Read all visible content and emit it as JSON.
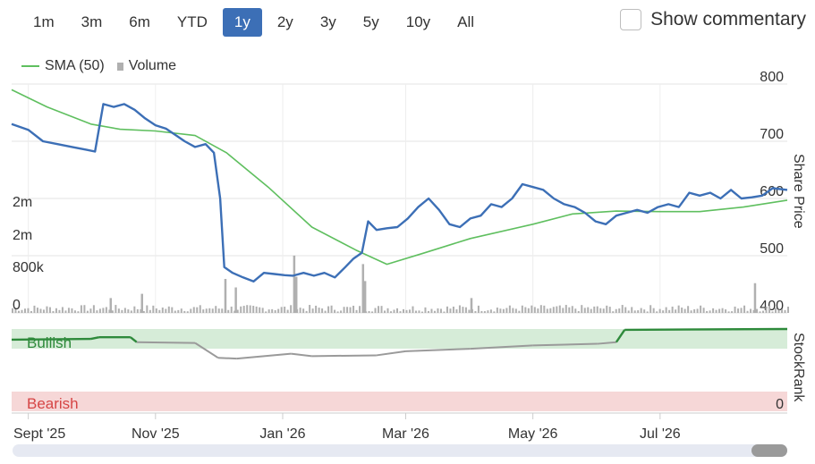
{
  "range_buttons": [
    {
      "label": "1m",
      "active": false
    },
    {
      "label": "3m",
      "active": false
    },
    {
      "label": "6m",
      "active": false
    },
    {
      "label": "YTD",
      "active": false
    },
    {
      "label": "1y",
      "active": true
    },
    {
      "label": "2y",
      "active": false
    },
    {
      "label": "3y",
      "active": false
    },
    {
      "label": "5y",
      "active": false
    },
    {
      "label": "10y",
      "active": false
    },
    {
      "label": "All",
      "active": false
    }
  ],
  "commentary": {
    "label": "Show commentary",
    "checked": false
  },
  "legend": {
    "sma_label": "SMA (50)",
    "volume_label": "Volume"
  },
  "colors": {
    "price": "#3c6fb6",
    "sma": "#5fbf5f",
    "volume": "#b0b0b0",
    "bullish_band": "#d6ecd8",
    "bearish_band": "#f6d7d7",
    "stockrank_bull": "#2e8a3b",
    "stockrank_grey": "#9a9a9a",
    "bearish_text": "#d64545",
    "bullish_text": "#2e8a3b",
    "active_button": "#3c6fb6"
  },
  "chart_data": [
    {
      "type": "line",
      "y_axis_label": "Share Price",
      "y_ticks": [
        "800",
        "700",
        "600",
        "500",
        "400"
      ],
      "ylim": [
        400,
        800
      ],
      "x_tick_labels": [
        "Sept '25",
        "Nov '25",
        "Jan '26",
        "Mar '26",
        "May '26",
        "Jul '26"
      ],
      "x_ticks": [
        "2025-09-01",
        "2025-11-01",
        "2026-01-01",
        "2026-03-01",
        "2026-05-01",
        "2026-07-01"
      ],
      "xlim": [
        "2025-08-24",
        "2026-08-31"
      ],
      "grid": true,
      "series": [
        {
          "name": "Share price",
          "points": [
            [
              "2025-08-24",
              730
            ],
            [
              "2025-09-01",
              720
            ],
            [
              "2025-09-08",
              700
            ],
            [
              "2025-09-15",
              695
            ],
            [
              "2025-09-22",
              690
            ],
            [
              "2025-09-29",
              685
            ],
            [
              "2025-10-03",
              682
            ],
            [
              "2025-10-07",
              765
            ],
            [
              "2025-10-12",
              760
            ],
            [
              "2025-10-17",
              765
            ],
            [
              "2025-10-22",
              755
            ],
            [
              "2025-10-27",
              740
            ],
            [
              "2025-11-01",
              728
            ],
            [
              "2025-11-06",
              722
            ],
            [
              "2025-11-11",
              710
            ],
            [
              "2025-11-15",
              700
            ],
            [
              "2025-11-20",
              690
            ],
            [
              "2025-11-25",
              695
            ],
            [
              "2025-11-29",
              680
            ],
            [
              "2025-12-02",
              600
            ],
            [
              "2025-12-04",
              480
            ],
            [
              "2025-12-08",
              470
            ],
            [
              "2025-12-13",
              462
            ],
            [
              "2025-12-18",
              455
            ],
            [
              "2025-12-23",
              470
            ],
            [
              "2025-12-28",
              468
            ],
            [
              "2026-01-02",
              466
            ],
            [
              "2026-01-06",
              465
            ],
            [
              "2026-01-11",
              470
            ],
            [
              "2026-01-16",
              465
            ],
            [
              "2026-01-21",
              470
            ],
            [
              "2026-01-26",
              462
            ],
            [
              "2026-01-31",
              480
            ],
            [
              "2026-02-04",
              495
            ],
            [
              "2026-02-08",
              505
            ],
            [
              "2026-02-11",
              560
            ],
            [
              "2026-02-15",
              545
            ],
            [
              "2026-02-20",
              548
            ],
            [
              "2026-02-25",
              550
            ],
            [
              "2026-03-02",
              565
            ],
            [
              "2026-03-07",
              585
            ],
            [
              "2026-03-12",
              600
            ],
            [
              "2026-03-17",
              580
            ],
            [
              "2026-03-22",
              555
            ],
            [
              "2026-03-27",
              550
            ],
            [
              "2026-04-01",
              565
            ],
            [
              "2026-04-06",
              570
            ],
            [
              "2026-04-11",
              590
            ],
            [
              "2026-04-16",
              585
            ],
            [
              "2026-04-21",
              600
            ],
            [
              "2026-04-26",
              625
            ],
            [
              "2026-05-01",
              620
            ],
            [
              "2026-05-06",
              615
            ],
            [
              "2026-05-11",
              600
            ],
            [
              "2026-05-16",
              590
            ],
            [
              "2026-05-21",
              585
            ],
            [
              "2026-05-26",
              575
            ],
            [
              "2026-05-31",
              560
            ],
            [
              "2026-06-05",
              555
            ],
            [
              "2026-06-10",
              570
            ],
            [
              "2026-06-15",
              575
            ],
            [
              "2026-06-20",
              580
            ],
            [
              "2026-06-25",
              575
            ],
            [
              "2026-06-30",
              585
            ],
            [
              "2026-07-05",
              590
            ],
            [
              "2026-07-10",
              585
            ],
            [
              "2026-07-15",
              610
            ],
            [
              "2026-07-20",
              605
            ],
            [
              "2026-07-25",
              610
            ],
            [
              "2026-07-30",
              600
            ],
            [
              "2026-08-04",
              615
            ],
            [
              "2026-08-09",
              600
            ],
            [
              "2026-08-14",
              602
            ],
            [
              "2026-08-19",
              605
            ],
            [
              "2026-08-24",
              618
            ],
            [
              "2026-08-31",
              615
            ]
          ]
        },
        {
          "name": "SMA (50)",
          "points": [
            [
              "2025-08-24",
              790
            ],
            [
              "2025-09-10",
              760
            ],
            [
              "2025-10-01",
              730
            ],
            [
              "2025-10-15",
              721
            ],
            [
              "2025-11-01",
              718
            ],
            [
              "2025-11-20",
              710
            ],
            [
              "2025-12-05",
              680
            ],
            [
              "2025-12-25",
              620
            ],
            [
              "2026-01-15",
              550
            ],
            [
              "2026-02-05",
              510
            ],
            [
              "2026-02-20",
              485
            ],
            [
              "2026-03-10",
              505
            ],
            [
              "2026-04-01",
              530
            ],
            [
              "2026-05-01",
              555
            ],
            [
              "2026-05-20",
              573
            ],
            [
              "2026-06-10",
              578
            ],
            [
              "2026-07-01",
              577
            ],
            [
              "2026-07-20",
              577
            ],
            [
              "2026-08-10",
              585
            ],
            [
              "2026-08-31",
              597
            ]
          ]
        }
      ]
    },
    {
      "type": "bar",
      "series_name": "Volume",
      "y_ticks": [
        "0",
        "800k",
        "2m",
        "2m"
      ],
      "ylim": [
        0,
        4000000
      ],
      "description_values": "daily volume bars, mostly under 800k with spikes in early Dec 2025 and early Feb 2026",
      "spikes": [
        [
          "2025-10-10",
          700000
        ],
        [
          "2025-10-25",
          900000
        ],
        [
          "2025-12-04",
          1600000
        ],
        [
          "2025-12-09",
          1200000
        ],
        [
          "2026-01-06",
          2700000
        ],
        [
          "2026-01-07",
          1700000
        ],
        [
          "2026-02-08",
          2300000
        ],
        [
          "2026-02-09",
          1500000
        ],
        [
          "2026-04-01",
          700000
        ],
        [
          "2026-08-15",
          1400000
        ]
      ]
    },
    {
      "type": "line",
      "y_axis_label": "StockRank",
      "y_ticks": [
        "0"
      ],
      "ylim": [
        0,
        100
      ],
      "band_labels": [
        "Bullish",
        "Bearish"
      ],
      "series": [
        {
          "name": "StockRank",
          "points": [
            [
              "2025-08-24",
              87
            ],
            [
              "2025-10-01",
              88
            ],
            [
              "2025-10-05",
              90
            ],
            [
              "2025-10-20",
              90
            ],
            [
              "2025-10-23",
              84
            ],
            [
              "2025-11-20",
              83
            ],
            [
              "2025-12-01",
              65
            ],
            [
              "2025-12-10",
              64
            ],
            [
              "2026-01-05",
              70
            ],
            [
              "2026-01-15",
              67
            ],
            [
              "2026-02-15",
              68
            ],
            [
              "2026-03-01",
              73
            ],
            [
              "2026-04-01",
              76
            ],
            [
              "2026-05-01",
              80
            ],
            [
              "2026-06-01",
              82
            ],
            [
              "2026-06-10",
              84
            ],
            [
              "2026-06-14",
              99
            ],
            [
              "2026-08-31",
              100
            ]
          ]
        }
      ]
    }
  ]
}
